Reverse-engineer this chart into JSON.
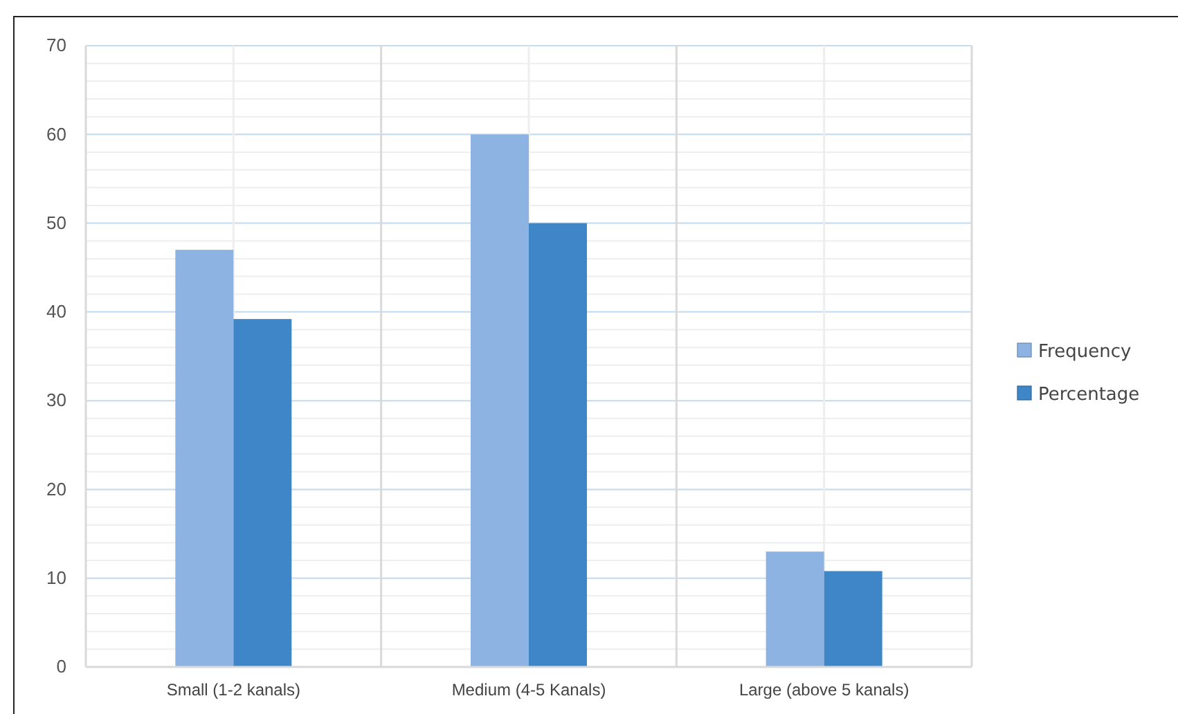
{
  "chart_data": {
    "type": "bar",
    "categories": [
      "Small (1-2 kanals)",
      "Medium (4-5 Kanals)",
      "Large (above 5 kanals)"
    ],
    "series": [
      {
        "name": "Frequency",
        "color": "#8db3e2",
        "values": [
          47,
          60,
          13
        ]
      },
      {
        "name": "Percentage",
        "color": "#3f86c9",
        "values": [
          39.2,
          50,
          10.8
        ]
      }
    ],
    "ylim": [
      0,
      70
    ],
    "yticks": [
      0,
      10,
      20,
      30,
      40,
      50,
      60,
      70
    ],
    "grid": true,
    "legend": "right"
  }
}
